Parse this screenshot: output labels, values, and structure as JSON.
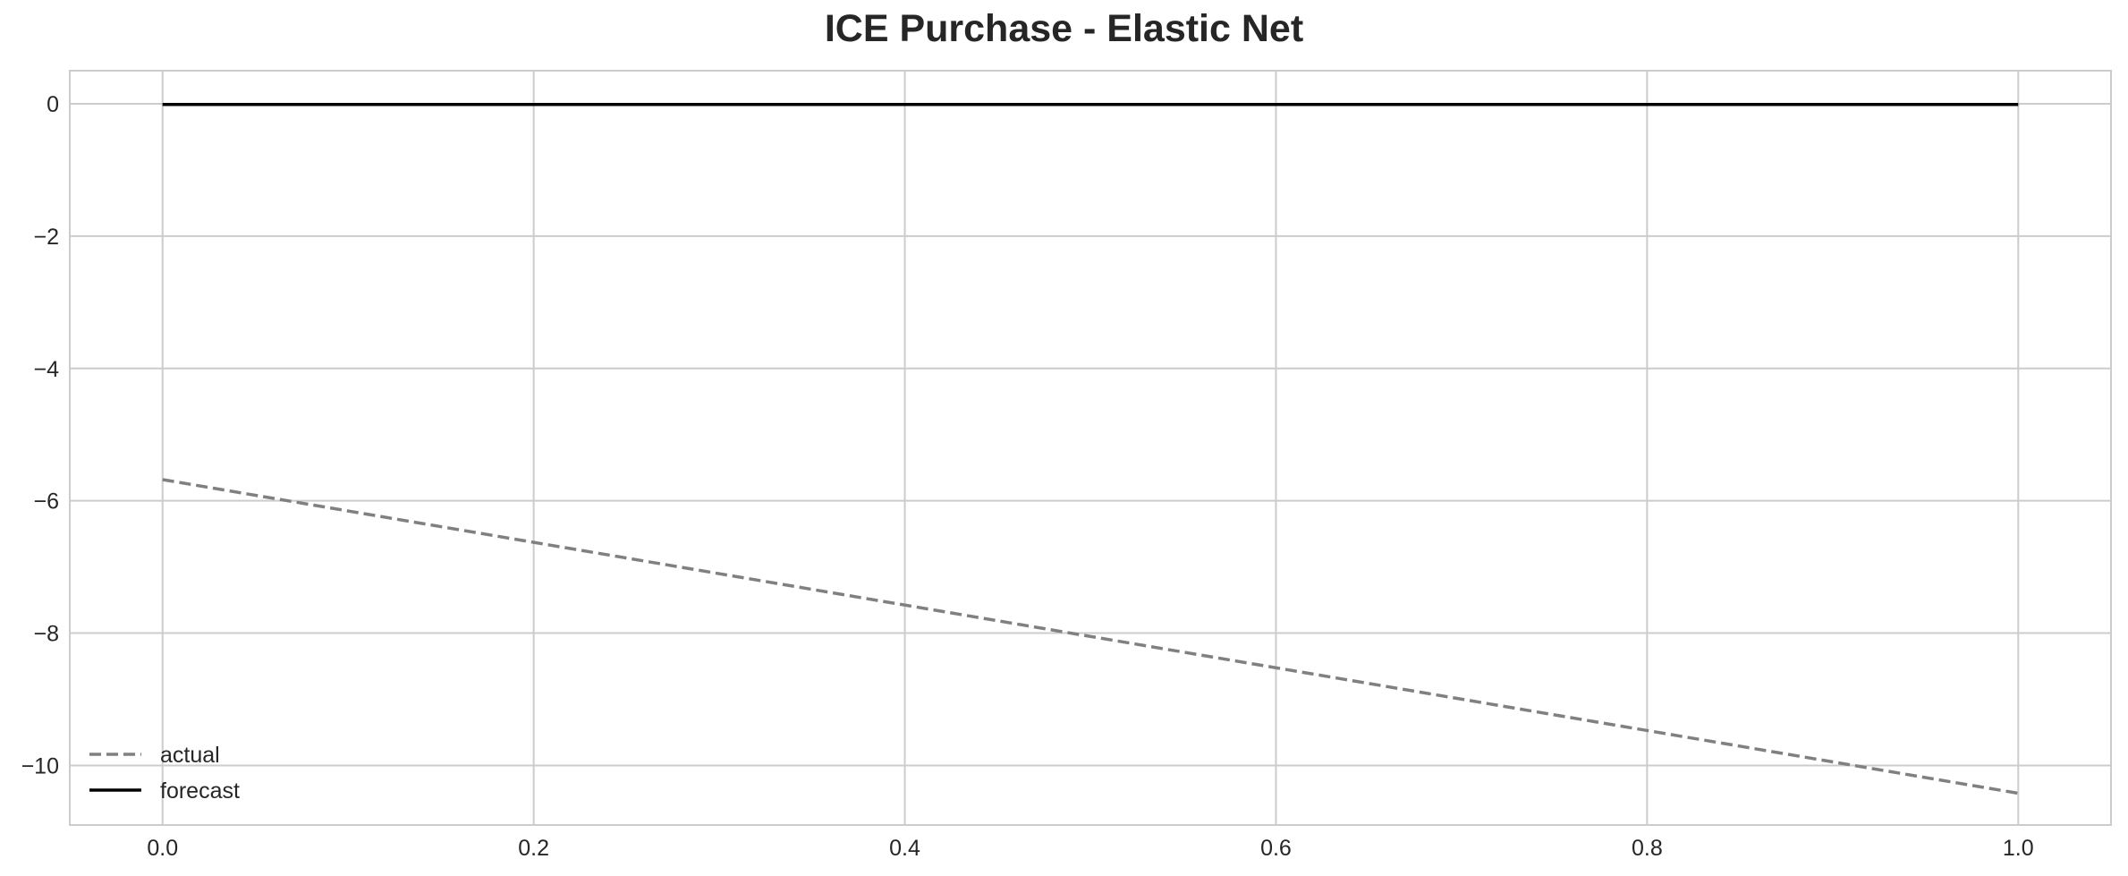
{
  "chart_data": {
    "type": "line",
    "title": "ICE Purchase - Elastic Net",
    "xlabel": "",
    "ylabel": "",
    "xlim": [
      -0.05,
      1.05
    ],
    "ylim": [
      -10.9,
      0.5
    ],
    "x_ticks": [
      0.0,
      0.2,
      0.4,
      0.6,
      0.8,
      1.0
    ],
    "x_tick_labels": [
      "0.0",
      "0.2",
      "0.4",
      "0.6",
      "0.8",
      "1.0"
    ],
    "y_ticks": [
      0,
      -2,
      -4,
      -6,
      -8,
      -10
    ],
    "y_tick_labels": [
      "0",
      "−2",
      "−4",
      "−6",
      "−8",
      "−10"
    ],
    "grid": true,
    "legend_position": "bottom-left",
    "series": [
      {
        "name": "actual",
        "style": "dashed",
        "color": "#808080",
        "x": [
          0.0,
          1.0
        ],
        "y": [
          -5.68,
          -10.42
        ]
      },
      {
        "name": "forecast",
        "style": "solid",
        "color": "#000000",
        "x": [
          0.0,
          1.0
        ],
        "y": [
          -0.01,
          -0.01
        ]
      }
    ]
  }
}
